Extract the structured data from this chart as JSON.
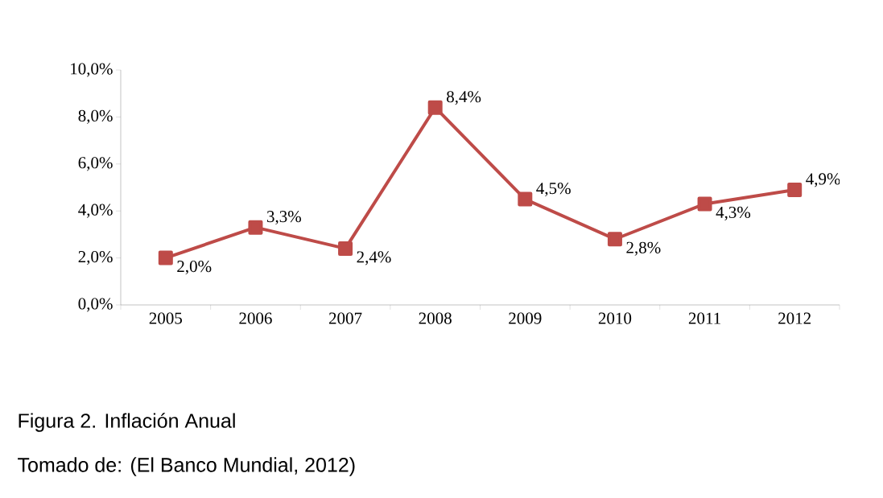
{
  "chart_data": {
    "type": "line",
    "categories": [
      "2005",
      "2006",
      "2007",
      "2008",
      "2009",
      "2010",
      "2011",
      "2012"
    ],
    "series": [
      {
        "color": "#be4b48",
        "values": [
          2.0,
          3.3,
          2.4,
          8.4,
          4.5,
          2.8,
          4.3,
          4.9
        ],
        "value_labels": [
          "2,0%",
          "3,3%",
          "2,4%",
          "8,4%",
          "4,5%",
          "2,8%",
          "4,3%",
          "4,9%"
        ]
      }
    ],
    "ylim": [
      0,
      10
    ],
    "yticks": [
      {
        "value": 0,
        "label": "0,0%"
      },
      {
        "value": 2,
        "label": "2,0%"
      },
      {
        "value": 4,
        "label": "4,0%"
      },
      {
        "value": 6,
        "label": "6,0%"
      },
      {
        "value": 8,
        "label": "8,0%"
      },
      {
        "value": 10,
        "label": "10,0%"
      }
    ],
    "marker": "square",
    "line_style": "solid",
    "annotations": [
      "Figura 2. Inflación Anual",
      "Tomado de: (El Banco Mundial, 2012)"
    ]
  }
}
